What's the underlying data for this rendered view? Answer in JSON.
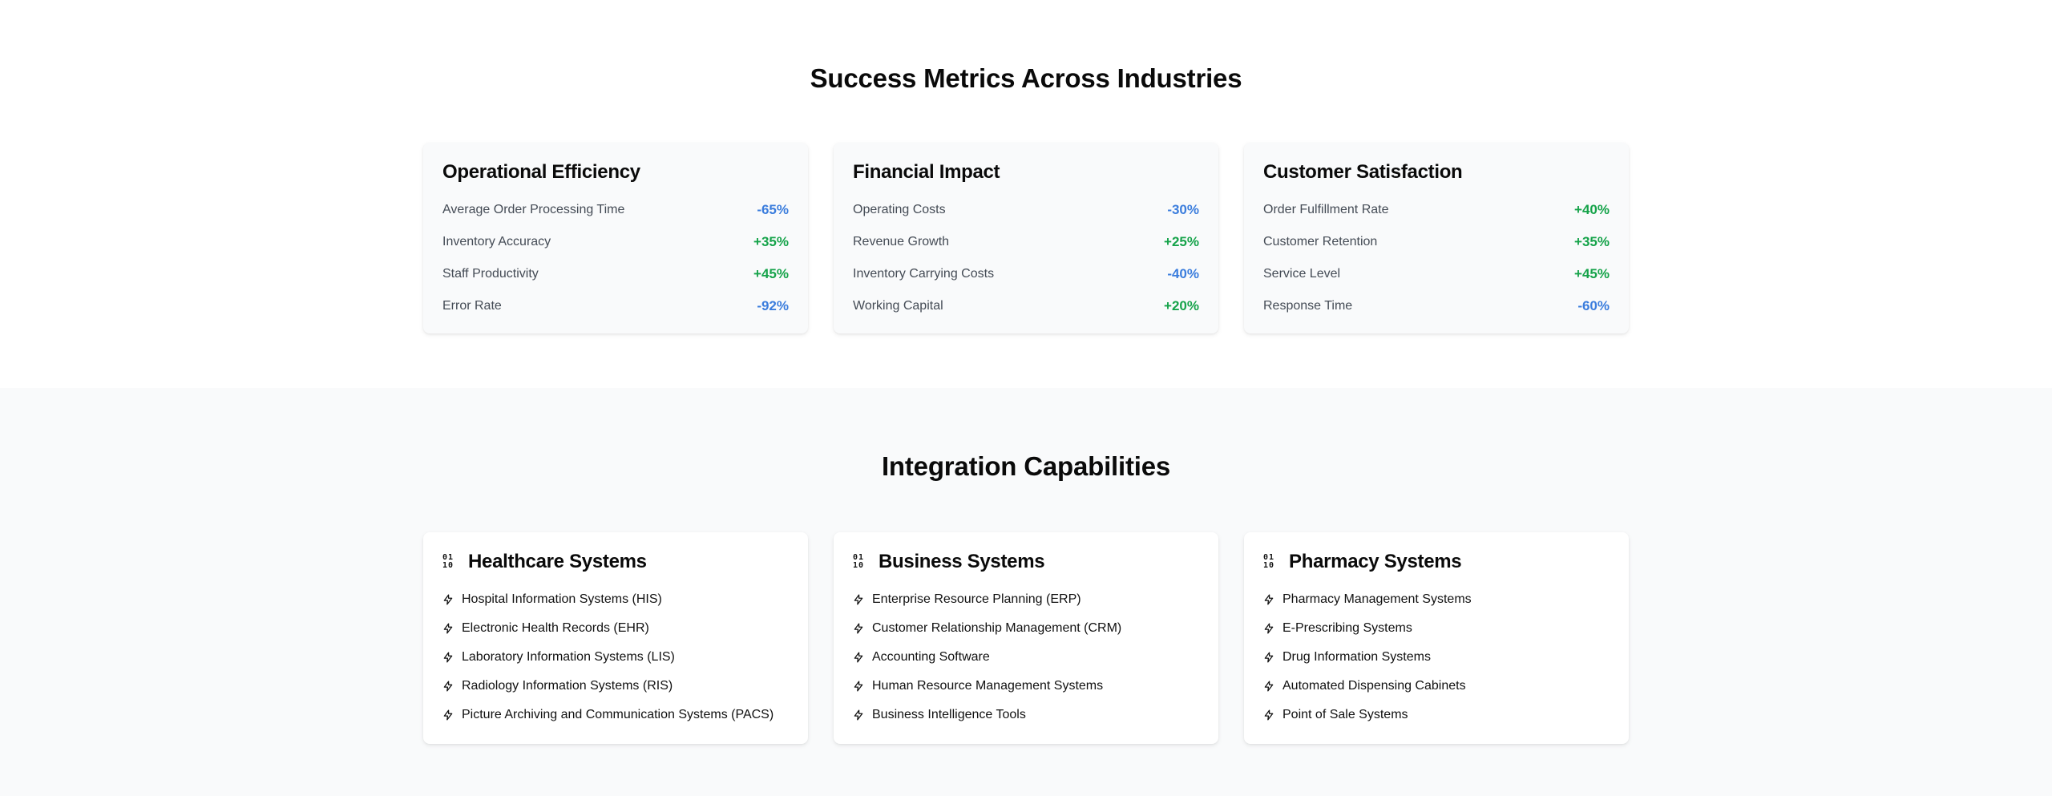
{
  "metrics_section": {
    "title": "Success Metrics Across Industries",
    "cards": [
      {
        "title": "Operational Efficiency",
        "rows": [
          {
            "label": "Average Order Processing Time",
            "value": "-65%",
            "trend": "down"
          },
          {
            "label": "Inventory Accuracy",
            "value": "+35%",
            "trend": "up"
          },
          {
            "label": "Staff Productivity",
            "value": "+45%",
            "trend": "up"
          },
          {
            "label": "Error Rate",
            "value": "-92%",
            "trend": "down"
          }
        ]
      },
      {
        "title": "Financial Impact",
        "rows": [
          {
            "label": "Operating Costs",
            "value": "-30%",
            "trend": "down"
          },
          {
            "label": "Revenue Growth",
            "value": "+25%",
            "trend": "up"
          },
          {
            "label": "Inventory Carrying Costs",
            "value": "-40%",
            "trend": "down"
          },
          {
            "label": "Working Capital",
            "value": "+20%",
            "trend": "up"
          }
        ]
      },
      {
        "title": "Customer Satisfaction",
        "rows": [
          {
            "label": "Order Fulfillment Rate",
            "value": "+40%",
            "trend": "up"
          },
          {
            "label": "Customer Retention",
            "value": "+35%",
            "trend": "up"
          },
          {
            "label": "Service Level",
            "value": "+45%",
            "trend": "up"
          },
          {
            "label": "Response Time",
            "value": "-60%",
            "trend": "down"
          }
        ]
      }
    ]
  },
  "integration_section": {
    "title": "Integration Capabilities",
    "cards": [
      {
        "title": "Healthcare Systems",
        "icon": "binary-icon",
        "items": [
          "Hospital Information Systems (HIS)",
          "Electronic Health Records (EHR)",
          "Laboratory Information Systems (LIS)",
          "Radiology Information Systems (RIS)",
          "Picture Archiving and Communication Systems (PACS)"
        ]
      },
      {
        "title": "Business Systems",
        "icon": "binary-icon",
        "items": [
          "Enterprise Resource Planning (ERP)",
          "Customer Relationship Management (CRM)",
          "Accounting Software",
          "Human Resource Management Systems",
          "Business Intelligence Tools"
        ]
      },
      {
        "title": "Pharmacy Systems",
        "icon": "binary-icon",
        "items": [
          "Pharmacy Management Systems",
          "E-Prescribing Systems",
          "Drug Information Systems",
          "Automated Dispensing Cabinets",
          "Point of Sale Systems"
        ]
      }
    ],
    "item_icon": "bolt-icon"
  },
  "colors": {
    "up": "#16a34a",
    "down": "#3b7ddd"
  }
}
